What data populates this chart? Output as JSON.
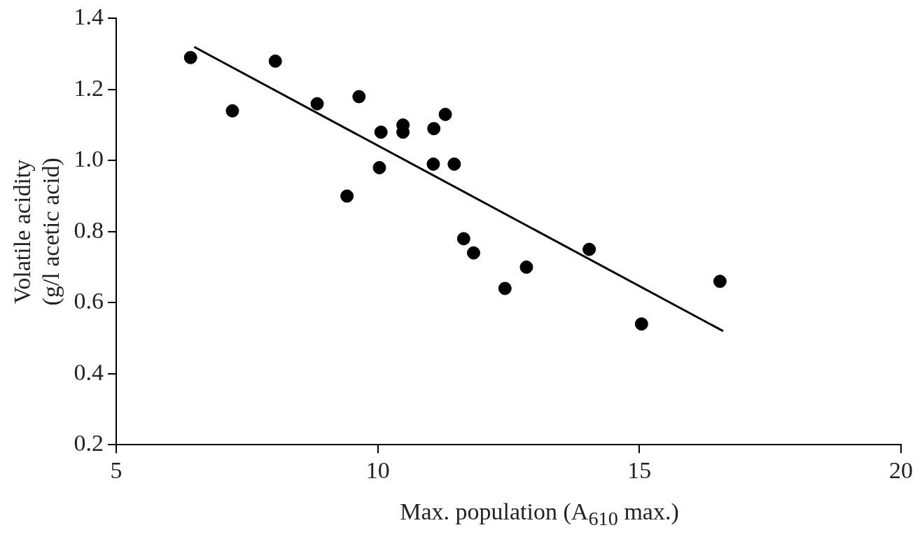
{
  "chart_data": {
    "type": "scatter",
    "xlabel": "Max. population (A$_{610}$ max.)",
    "ylabel": "Volatile acidity\n(g/l acetic acid)",
    "xlim": [
      5,
      20
    ],
    "xticks": [
      5,
      10,
      15,
      20
    ],
    "ylim": [
      0.2,
      1.4
    ],
    "yticks": [
      {
        "value": 0.2,
        "label": "0.2"
      },
      {
        "value": 0.4,
        "label": "0.4"
      },
      {
        "value": 0.6,
        "label": "0.6"
      },
      {
        "value": 0.8,
        "label": "0.8"
      },
      {
        "value": 1.0,
        "label": "1.0"
      },
      {
        "value": 1.2,
        "label": "1.2"
      },
      {
        "value": 1.4,
        "label": "1.4"
      }
    ],
    "grid": false,
    "legend": false,
    "marker": "circle",
    "series": [
      {
        "color": "#000000",
        "x": [
          6.42,
          7.22,
          8.04,
          8.84,
          9.64,
          9.41,
          10.06,
          10.03,
          10.48,
          10.48,
          11.07,
          11.29,
          11.06,
          11.46,
          11.64,
          11.83,
          12.43,
          12.84,
          14.04,
          15.04,
          16.54
        ],
        "values": [
          1.29,
          1.14,
          1.28,
          1.16,
          1.18,
          0.9,
          1.08,
          0.98,
          1.1,
          1.08,
          1.09,
          1.13,
          0.99,
          0.99,
          0.78,
          0.74,
          0.64,
          0.7,
          0.75,
          0.54,
          0.66
        ]
      },
      {
        "type": "line",
        "color": "#000000",
        "x": [
          6.49,
          16.6
        ],
        "values": [
          1.32,
          0.52
        ],
        "marker": "none"
      }
    ]
  }
}
